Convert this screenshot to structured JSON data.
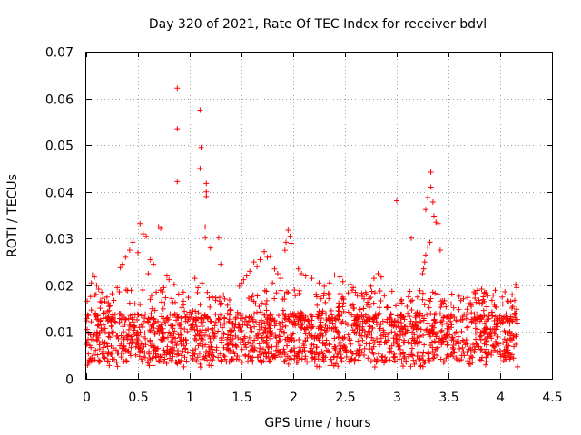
{
  "chart_data": {
    "type": "scatter",
    "title": "Day 320 of 2021, Rate Of TEC Index for receiver bdvl",
    "xlabel": "GPS time / hours",
    "ylabel": "ROTI / TECUs",
    "xlim": [
      0,
      4.5
    ],
    "ylim": [
      0,
      0.07
    ],
    "xticks": [
      "0",
      "0.5",
      "1",
      "1.5",
      "2",
      "2.5",
      "3",
      "3.5",
      "4",
      "4.5"
    ],
    "yticks": [
      "0",
      "0.01",
      "0.02",
      "0.03",
      "0.04",
      "0.05",
      "0.06",
      "0.07"
    ],
    "grid": true,
    "marker": "plus",
    "color": "#ff0000",
    "series": [
      {
        "name": "ROTI",
        "points": [
          [
            0.88,
            0.0622
          ],
          [
            0.88,
            0.0535
          ],
          [
            0.88,
            0.0422
          ],
          [
            1.1,
            0.0575
          ],
          [
            1.11,
            0.0495
          ],
          [
            1.1,
            0.045
          ],
          [
            1.16,
            0.0418
          ],
          [
            1.16,
            0.04
          ],
          [
            1.16,
            0.039
          ],
          [
            1.15,
            0.0325
          ],
          [
            1.15,
            0.0302
          ],
          [
            1.2,
            0.028
          ],
          [
            1.28,
            0.0302
          ],
          [
            1.3,
            0.0245
          ],
          [
            3.0,
            0.0381
          ],
          [
            3.33,
            0.0442
          ],
          [
            3.33,
            0.041
          ],
          [
            3.3,
            0.0388
          ],
          [
            3.35,
            0.0378
          ],
          [
            3.28,
            0.0362
          ],
          [
            3.36,
            0.0348
          ],
          [
            3.38,
            0.0335
          ],
          [
            3.4,
            0.0332
          ],
          [
            3.14,
            0.0301
          ],
          [
            3.32,
            0.0292
          ],
          [
            3.3,
            0.0282
          ],
          [
            3.28,
            0.0265
          ],
          [
            3.27,
            0.025
          ],
          [
            3.26,
            0.0235
          ],
          [
            3.25,
            0.0225
          ],
          [
            3.42,
            0.0275
          ],
          [
            0.52,
            0.0332
          ],
          [
            0.55,
            0.031
          ],
          [
            0.58,
            0.0305
          ],
          [
            0.45,
            0.0292
          ],
          [
            0.42,
            0.0275
          ],
          [
            0.38,
            0.026
          ],
          [
            0.33,
            0.0238
          ],
          [
            0.35,
            0.0245
          ],
          [
            0.5,
            0.027
          ],
          [
            0.62,
            0.0255
          ],
          [
            0.65,
            0.0245
          ],
          [
            0.6,
            0.0225
          ],
          [
            0.7,
            0.0325
          ],
          [
            0.72,
            0.0322
          ],
          [
            0.06,
            0.0222
          ],
          [
            0.08,
            0.0218
          ],
          [
            0.05,
            0.0205
          ],
          [
            0.1,
            0.02
          ],
          [
            0.12,
            0.0192
          ],
          [
            0.15,
            0.0185
          ],
          [
            0.2,
            0.0175
          ],
          [
            0.25,
            0.0182
          ],
          [
            0.3,
            0.0195
          ],
          [
            0.18,
            0.0165
          ],
          [
            0.78,
            0.022
          ],
          [
            0.8,
            0.0212
          ],
          [
            0.85,
            0.0202
          ],
          [
            0.75,
            0.0195
          ],
          [
            1.05,
            0.0215
          ],
          [
            1.08,
            0.0195
          ],
          [
            1.12,
            0.0205
          ],
          [
            1.17,
            0.0185
          ],
          [
            1.22,
            0.0175
          ],
          [
            1.25,
            0.0168
          ],
          [
            1.95,
            0.0318
          ],
          [
            1.97,
            0.0305
          ],
          [
            1.93,
            0.0292
          ],
          [
            1.98,
            0.029
          ],
          [
            1.92,
            0.0275
          ],
          [
            1.72,
            0.0272
          ],
          [
            1.75,
            0.026
          ],
          [
            1.78,
            0.0262
          ],
          [
            1.68,
            0.0255
          ],
          [
            1.62,
            0.025
          ],
          [
            1.65,
            0.024
          ],
          [
            1.58,
            0.023
          ],
          [
            1.55,
            0.022
          ],
          [
            1.52,
            0.0212
          ],
          [
            1.5,
            0.0205
          ],
          [
            1.48,
            0.0198
          ],
          [
            1.82,
            0.0235
          ],
          [
            1.85,
            0.0225
          ],
          [
            1.88,
            0.0215
          ],
          [
            1.8,
            0.0205
          ],
          [
            2.05,
            0.0235
          ],
          [
            2.08,
            0.0225
          ],
          [
            2.12,
            0.022
          ],
          [
            2.18,
            0.0215
          ],
          [
            2.25,
            0.0205
          ],
          [
            2.3,
            0.0198
          ],
          [
            2.35,
            0.0205
          ],
          [
            2.4,
            0.0222
          ],
          [
            2.45,
            0.0218
          ],
          [
            2.48,
            0.0208
          ],
          [
            2.55,
            0.0202
          ],
          [
            2.58,
            0.0195
          ],
          [
            2.6,
            0.0185
          ],
          [
            2.62,
            0.0178
          ],
          [
            2.7,
            0.0185
          ],
          [
            2.78,
            0.0215
          ],
          [
            2.82,
            0.0225
          ],
          [
            2.85,
            0.0218
          ],
          [
            2.75,
            0.0198
          ],
          [
            2.88,
            0.0178
          ],
          [
            3.05,
            0.0162
          ],
          [
            3.1,
            0.0155
          ],
          [
            3.15,
            0.0168
          ],
          [
            3.2,
            0.0175
          ],
          [
            3.45,
            0.0162
          ],
          [
            3.55,
            0.0152
          ],
          [
            3.6,
            0.0148
          ],
          [
            3.72,
            0.0155
          ],
          [
            3.8,
            0.0162
          ],
          [
            3.82,
            0.0192
          ],
          [
            3.85,
            0.0185
          ],
          [
            3.88,
            0.0178
          ],
          [
            3.92,
            0.0168
          ],
          [
            3.95,
            0.0155
          ],
          [
            4.02,
            0.0175
          ],
          [
            4.08,
            0.0165
          ],
          [
            4.15,
            0.0202
          ],
          [
            4.16,
            0.0195
          ],
          [
            4.14,
            0.0168
          ],
          [
            4.12,
            0.0155
          ]
        ]
      }
    ]
  }
}
